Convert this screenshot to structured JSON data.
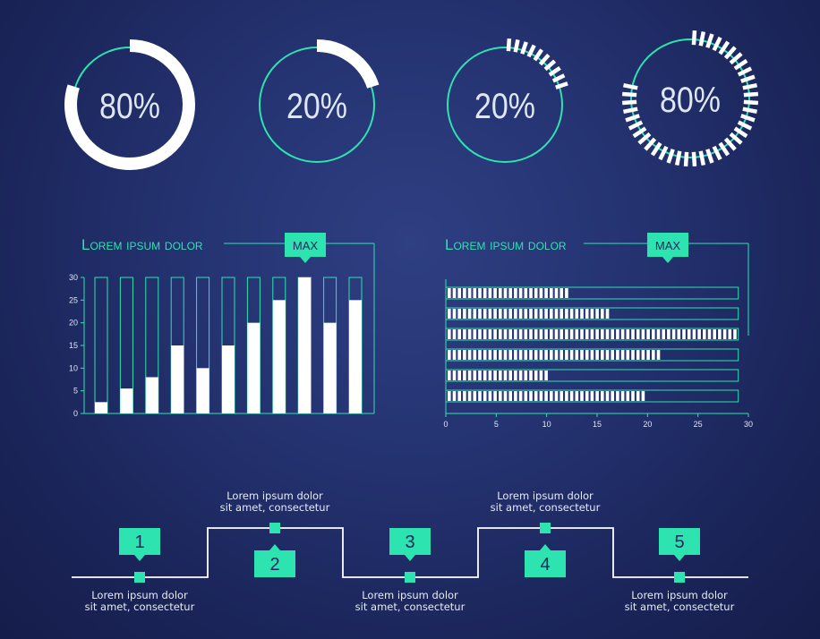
{
  "colors": {
    "background": "#1e2a63",
    "accent": "#2de3b0",
    "fill": "#ffffff",
    "label": "#dfe6f4"
  },
  "gauges": [
    {
      "label": "80%",
      "value": 80,
      "style": "solid"
    },
    {
      "label": "20%",
      "value": 20,
      "style": "solid"
    },
    {
      "label": "20%",
      "value": 20,
      "style": "segmented"
    },
    {
      "label": "80%",
      "value": 80,
      "style": "segmented"
    }
  ],
  "chart_data": [
    {
      "type": "bar",
      "title": "Lorem ipsum dolor",
      "callout": "MAX",
      "categories": [
        "",
        "",
        "",
        "",
        "",
        "",
        "",
        "",
        "",
        "",
        ""
      ],
      "values": [
        2.5,
        5.5,
        8,
        15,
        10,
        15,
        20,
        25,
        30,
        20,
        25
      ],
      "capacity": 30,
      "ylim": [
        0,
        30
      ],
      "yticks": [
        0,
        5,
        10,
        15,
        20,
        25,
        30
      ],
      "grid": false,
      "orientation": "vertical"
    },
    {
      "type": "bar",
      "title": "Lorem ipsum dolor",
      "callout": "MAX",
      "categories": [
        "",
        "",
        "",
        "",
        "",
        ""
      ],
      "values": [
        12,
        16,
        29,
        21.5,
        10,
        19.5
      ],
      "capacity": 29,
      "xlim": [
        0,
        30
      ],
      "xticks": [
        0,
        5,
        10,
        15,
        20,
        25,
        30
      ],
      "grid": false,
      "orientation": "horizontal",
      "style": "segmented"
    }
  ],
  "timeline": {
    "steps": [
      {
        "number": "1",
        "position": "down",
        "text_line1": "Lorem ipsum dolor",
        "text_line2": "sit amet, consectetur"
      },
      {
        "number": "2",
        "position": "up",
        "text_line1": "Lorem ipsum dolor",
        "text_line2": "sit amet, consectetur"
      },
      {
        "number": "3",
        "position": "down",
        "text_line1": "Lorem ipsum dolor",
        "text_line2": "sit amet, consectetur"
      },
      {
        "number": "4",
        "position": "up",
        "text_line1": "Lorem ipsum dolor",
        "text_line2": "sit amet, consectetur"
      },
      {
        "number": "5",
        "position": "down",
        "text_line1": "Lorem ipsum dolor",
        "text_line2": "sit amet, consectetur"
      }
    ]
  }
}
